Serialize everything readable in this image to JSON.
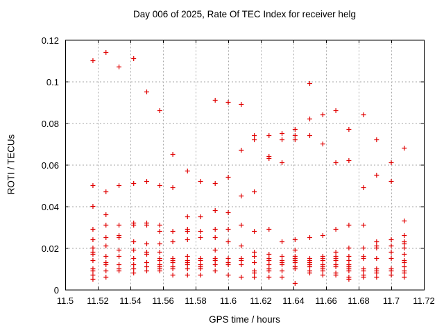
{
  "chart_data": {
    "type": "scatter",
    "title": "Day 006 of 2025, Rate Of TEC Index for receiver helg",
    "xlabel": "GPS time / hours",
    "ylabel": "ROTI / TECUs",
    "xlim": [
      11.5,
      11.72
    ],
    "ylim": [
      0,
      0.12
    ],
    "xticks": [
      11.5,
      11.52,
      11.54,
      11.56,
      11.58,
      11.6,
      11.62,
      11.64,
      11.66,
      11.68,
      11.7,
      11.72
    ],
    "xtick_labels": [
      "11.5",
      "11.52",
      "11.54",
      "11.56",
      "11.58",
      "11.6",
      "11.62",
      "11.64",
      "11.66",
      "11.68",
      "11.7",
      "11.72"
    ],
    "yticks": [
      0,
      0.02,
      0.04,
      0.06,
      0.08,
      0.1,
      0.12
    ],
    "ytick_labels": [
      "0",
      "0.02",
      "0.04",
      "0.06",
      "0.08",
      "0.1",
      "0.12"
    ],
    "grid": true,
    "legend": false,
    "marker": "plus",
    "marker_color": "#e00000",
    "grid_color": "#a6a6a6",
    "axis_color": "#000000",
    "series": [
      {
        "name": "ROTI",
        "columns": [
          {
            "x": 11.517,
            "y": [
              0.11,
              0.05,
              0.04,
              0.029,
              0.024,
              0.02,
              0.018,
              0.017,
              0.014,
              0.01,
              0.009,
              0.007,
              0.005
            ]
          },
          {
            "x": 11.525,
            "y": [
              0.114,
              0.047,
              0.036,
              0.031,
              0.025,
              0.021,
              0.016,
              0.013,
              0.012,
              0.009,
              0.006
            ]
          },
          {
            "x": 11.533,
            "y": [
              0.107,
              0.05,
              0.031,
              0.026,
              0.025,
              0.019,
              0.016,
              0.012,
              0.01,
              0.009
            ]
          },
          {
            "x": 11.542,
            "y": [
              0.111,
              0.051,
              0.032,
              0.031,
              0.023,
              0.019,
              0.015,
              0.012,
              0.01,
              0.008
            ]
          },
          {
            "x": 11.55,
            "y": [
              0.095,
              0.052,
              0.032,
              0.031,
              0.022,
              0.018,
              0.017,
              0.013,
              0.011,
              0.009
            ]
          },
          {
            "x": 11.558,
            "y": [
              0.086,
              0.05,
              0.031,
              0.028,
              0.022,
              0.018,
              0.015,
              0.014,
              0.012,
              0.011,
              0.01,
              0.009
            ]
          },
          {
            "x": 11.566,
            "y": [
              0.065,
              0.049,
              0.028,
              0.023,
              0.015,
              0.014,
              0.013,
              0.011,
              0.01,
              0.007
            ]
          },
          {
            "x": 11.575,
            "y": [
              0.057,
              0.035,
              0.029,
              0.028,
              0.024,
              0.016,
              0.014,
              0.013,
              0.012,
              0.01,
              0.007
            ]
          },
          {
            "x": 11.583,
            "y": [
              0.052,
              0.035,
              0.028,
              0.025,
              0.015,
              0.014,
              0.012,
              0.011,
              0.01,
              0.007
            ]
          },
          {
            "x": 11.592,
            "y": [
              0.091,
              0.051,
              0.038,
              0.029,
              0.025,
              0.019,
              0.015,
              0.014,
              0.012,
              0.009
            ]
          },
          {
            "x": 11.6,
            "y": [
              0.09,
              0.054,
              0.037,
              0.029,
              0.023,
              0.015,
              0.013,
              0.012,
              0.007
            ]
          },
          {
            "x": 11.608,
            "y": [
              0.089,
              0.067,
              0.045,
              0.031,
              0.021,
              0.015,
              0.014,
              0.012,
              0.006
            ]
          },
          {
            "x": 11.616,
            "y": [
              0.074,
              0.072,
              0.047,
              0.028,
              0.018,
              0.016,
              0.013,
              0.009,
              0.008,
              0.006
            ]
          },
          {
            "x": 11.625,
            "y": [
              0.074,
              0.064,
              0.063,
              0.029,
              0.017,
              0.015,
              0.014,
              0.012,
              0.01,
              0.009,
              0.006
            ]
          },
          {
            "x": 11.633,
            "y": [
              0.075,
              0.072,
              0.061,
              0.023,
              0.016,
              0.014,
              0.013,
              0.012,
              0.009,
              0.006
            ]
          },
          {
            "x": 11.641,
            "y": [
              0.077,
              0.074,
              0.072,
              0.024,
              0.019,
              0.016,
              0.015,
              0.014,
              0.013,
              0.011,
              0.01,
              0.003
            ]
          },
          {
            "x": 11.65,
            "y": [
              0.099,
              0.082,
              0.074,
              0.025,
              0.015,
              0.014,
              0.013,
              0.012,
              0.011,
              0.009,
              0.008
            ]
          },
          {
            "x": 11.658,
            "y": [
              0.084,
              0.07,
              0.026,
              0.016,
              0.015,
              0.014,
              0.012,
              0.011,
              0.01,
              0.009,
              0.007
            ]
          },
          {
            "x": 11.666,
            "y": [
              0.086,
              0.061,
              0.029,
              0.018,
              0.016,
              0.015,
              0.014,
              0.012,
              0.011,
              0.008,
              0.007
            ]
          },
          {
            "x": 11.674,
            "y": [
              0.077,
              0.062,
              0.031,
              0.02,
              0.016,
              0.014,
              0.012,
              0.011,
              0.01,
              0.009,
              0.006,
              0.005
            ]
          },
          {
            "x": 11.683,
            "y": [
              0.084,
              0.049,
              0.031,
              0.02,
              0.016,
              0.015,
              0.01,
              0.009,
              0.007,
              0.006
            ]
          },
          {
            "x": 11.691,
            "y": [
              0.072,
              0.055,
              0.023,
              0.021,
              0.02,
              0.015,
              0.01,
              0.009,
              0.008,
              0.006
            ]
          },
          {
            "x": 11.7,
            "y": [
              0.061,
              0.052,
              0.024,
              0.021,
              0.018,
              0.015,
              0.01,
              0.009,
              0.007
            ]
          },
          {
            "x": 11.708,
            "y": [
              0.068,
              0.033,
              0.026,
              0.023,
              0.022,
              0.02,
              0.017,
              0.014,
              0.013,
              0.011,
              0.009,
              0.008,
              0.006
            ]
          }
        ]
      }
    ]
  }
}
